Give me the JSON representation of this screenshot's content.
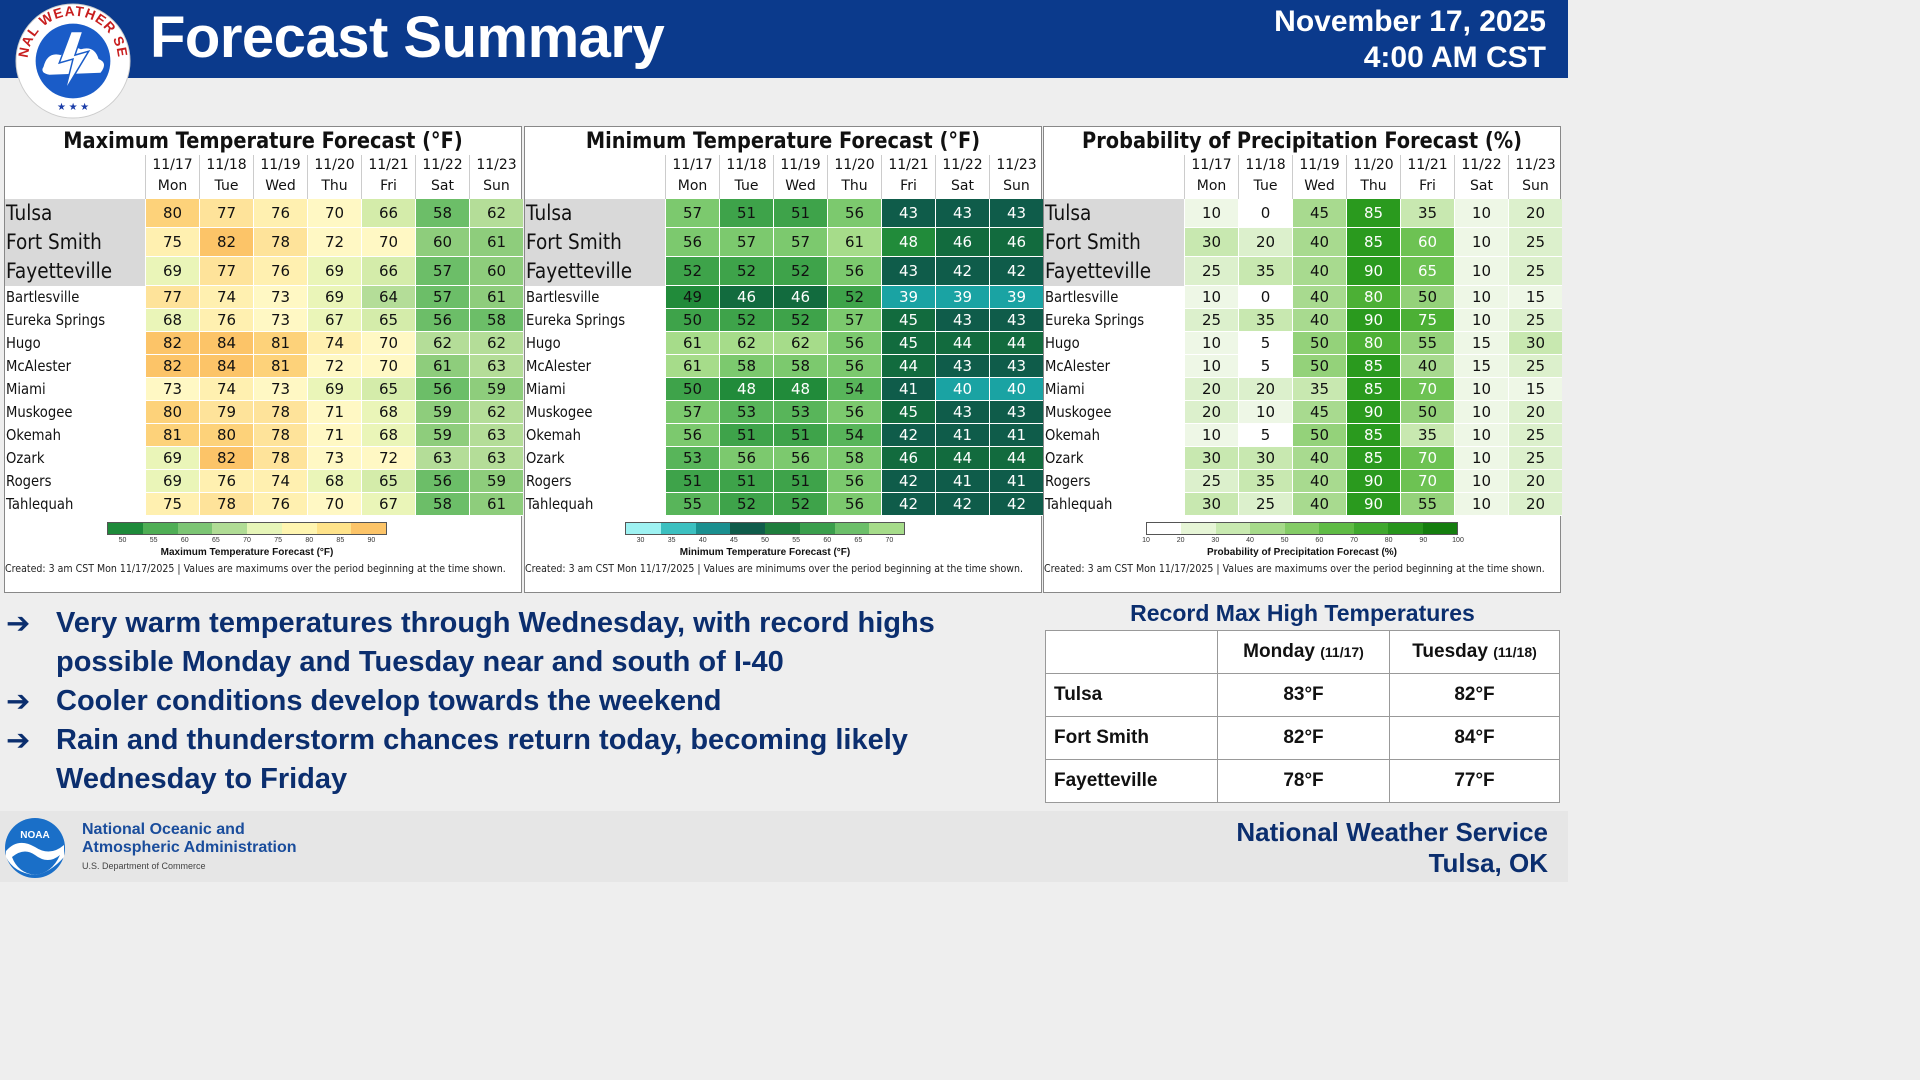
{
  "header": {
    "title": "Forecast Summary",
    "date": "November 17, 2025",
    "time": "4:00 AM CST",
    "logo_icon": "nws-seal-icon",
    "logo_text": "NATIONAL WEATHER SERVICE",
    "bg_color": "#0b3a8c"
  },
  "days": [
    {
      "date": "11/17",
      "dow": "Mon"
    },
    {
      "date": "11/18",
      "dow": "Tue"
    },
    {
      "date": "11/19",
      "dow": "Wed"
    },
    {
      "date": "11/20",
      "dow": "Thu"
    },
    {
      "date": "11/21",
      "dow": "Fri"
    },
    {
      "date": "11/22",
      "dow": "Sat"
    },
    {
      "date": "11/23",
      "dow": "Sun"
    }
  ],
  "cities": [
    "Tulsa",
    "Fort Smith",
    "Fayetteville",
    "Bartlesville",
    "Eureka Springs",
    "Hugo",
    "McAlester",
    "Miami",
    "Muskogee",
    "Okemah",
    "Ozark",
    "Rogers",
    "Tahlequah"
  ],
  "panels": [
    {
      "title": "Maximum Temperature Forecast (°F)",
      "legend_label": "Maximum Temperature Forecast (°F)",
      "legend_ticks": [
        "50",
        "55",
        "60",
        "65",
        "70",
        "75",
        "80",
        "85",
        "90"
      ],
      "legend_colors": [
        "#1e8a3a",
        "#4fae55",
        "#7cc574",
        "#b0dc95",
        "#e6f5b8",
        "#fff5b0",
        "#ffe38a",
        "#fcc468"
      ],
      "note": "Created: 3 am CST Mon 11/17/2025  |  Values are maximums over the period beginning at the time shown.",
      "values": [
        [
          80,
          77,
          76,
          70,
          66,
          58,
          62
        ],
        [
          75,
          82,
          78,
          72,
          70,
          60,
          61
        ],
        [
          69,
          77,
          76,
          69,
          66,
          57,
          60
        ],
        [
          77,
          74,
          73,
          69,
          64,
          57,
          61
        ],
        [
          68,
          76,
          73,
          67,
          65,
          56,
          58
        ],
        [
          82,
          84,
          81,
          74,
          70,
          62,
          62
        ],
        [
          82,
          84,
          81,
          72,
          70,
          61,
          63
        ],
        [
          73,
          74,
          73,
          69,
          65,
          56,
          59
        ],
        [
          80,
          79,
          78,
          71,
          68,
          59,
          62
        ],
        [
          81,
          80,
          78,
          71,
          68,
          59,
          63
        ],
        [
          69,
          82,
          78,
          73,
          72,
          63,
          63
        ],
        [
          69,
          76,
          74,
          68,
          65,
          56,
          59
        ],
        [
          75,
          78,
          76,
          70,
          67,
          58,
          61
        ]
      ]
    },
    {
      "title": "Minimum Temperature Forecast (°F)",
      "legend_label": "Minimum Temperature Forecast (°F)",
      "legend_ticks": [
        "30",
        "35",
        "40",
        "45",
        "50",
        "55",
        "60",
        "65",
        "70"
      ],
      "legend_colors": [
        "#9ef2f2",
        "#3cc0c0",
        "#1a8f8f",
        "#0f5c4a",
        "#1e7d3c",
        "#3a9e4c",
        "#6cbf6a",
        "#a6dc8a"
      ],
      "note": "Created: 3 am CST Mon 11/17/2025  |  Values are minimums over the period beginning at the time shown.",
      "values": [
        [
          57,
          51,
          51,
          56,
          43,
          43,
          43
        ],
        [
          56,
          57,
          57,
          61,
          48,
          46,
          46
        ],
        [
          52,
          52,
          52,
          56,
          43,
          42,
          42
        ],
        [
          49,
          46,
          46,
          52,
          39,
          39,
          39
        ],
        [
          50,
          52,
          52,
          57,
          45,
          43,
          43
        ],
        [
          61,
          62,
          62,
          56,
          45,
          44,
          44
        ],
        [
          61,
          58,
          58,
          56,
          44,
          43,
          43
        ],
        [
          50,
          48,
          48,
          54,
          41,
          40,
          40
        ],
        [
          57,
          53,
          53,
          56,
          45,
          43,
          43
        ],
        [
          56,
          51,
          51,
          54,
          42,
          41,
          41
        ],
        [
          53,
          56,
          56,
          58,
          46,
          44,
          44
        ],
        [
          51,
          51,
          51,
          56,
          42,
          41,
          41
        ],
        [
          55,
          52,
          52,
          56,
          42,
          42,
          42
        ]
      ]
    },
    {
      "title": "Probability of Precipitation Forecast (%)",
      "legend_label": "Probability of Precipitation Forecast (%)",
      "legend_ticks": [
        "10",
        "20",
        "30",
        "40",
        "50",
        "60",
        "70",
        "80",
        "90",
        "100"
      ],
      "legend_colors": [
        "#ffffff",
        "#e6f5d6",
        "#c8e9b0",
        "#a6da8a",
        "#84cb66",
        "#5fbb45",
        "#3fa82e",
        "#27941c",
        "#147d0e"
      ],
      "note": "Created: 3 am CST Mon 11/17/2025  |  Values are maximums over the period beginning at the time shown.",
      "values": [
        [
          10,
          0,
          45,
          85,
          35,
          10,
          20
        ],
        [
          30,
          20,
          40,
          85,
          60,
          10,
          25
        ],
        [
          25,
          35,
          40,
          90,
          65,
          10,
          25
        ],
        [
          10,
          0,
          40,
          80,
          50,
          10,
          15
        ],
        [
          25,
          35,
          40,
          90,
          75,
          10,
          25
        ],
        [
          10,
          5,
          50,
          80,
          55,
          15,
          30
        ],
        [
          10,
          5,
          50,
          85,
          40,
          15,
          25
        ],
        [
          20,
          20,
          35,
          85,
          70,
          10,
          15
        ],
        [
          20,
          10,
          45,
          90,
          50,
          10,
          20
        ],
        [
          10,
          5,
          50,
          85,
          35,
          10,
          25
        ],
        [
          30,
          30,
          40,
          85,
          70,
          10,
          25
        ],
        [
          25,
          35,
          40,
          90,
          70,
          10,
          20
        ],
        [
          30,
          25,
          40,
          90,
          55,
          10,
          20
        ]
      ]
    }
  ],
  "bullets": [
    {
      "arrow": "➔",
      "lines": [
        "Very warm temperatures through Wednesday, with record highs",
        "possible Monday and Tuesday near and south of I-40"
      ]
    },
    {
      "arrow": "➔",
      "lines": [
        "Cooler conditions develop towards the weekend"
      ]
    },
    {
      "arrow": "➔",
      "lines": [
        "Rain and thunderstorm chances return today, becoming likely",
        "Wednesday to Friday"
      ]
    }
  ],
  "records": {
    "title": "Record Max High Temperatures",
    "col1": "Monday",
    "col1_sub": "(11/17)",
    "col2": "Tuesday",
    "col2_sub": "(11/18)",
    "rows": [
      {
        "city": "Tulsa",
        "mon": "83°F",
        "tue": "82°F"
      },
      {
        "city": "Fort Smith",
        "mon": "82°F",
        "tue": "84°F"
      },
      {
        "city": "Fayetteville",
        "mon": "78°F",
        "tue": "77°F"
      }
    ]
  },
  "footer": {
    "noaa_icon": "noaa-logo-icon",
    "noaa_badge": "NOAA",
    "noaa_line1": "National Oceanic and",
    "noaa_line2": "Atmospheric Administration",
    "noaa_sub": "U.S. Department of Commerce",
    "office_line1": "National Weather Service",
    "office_line2": "Tulsa, OK"
  }
}
